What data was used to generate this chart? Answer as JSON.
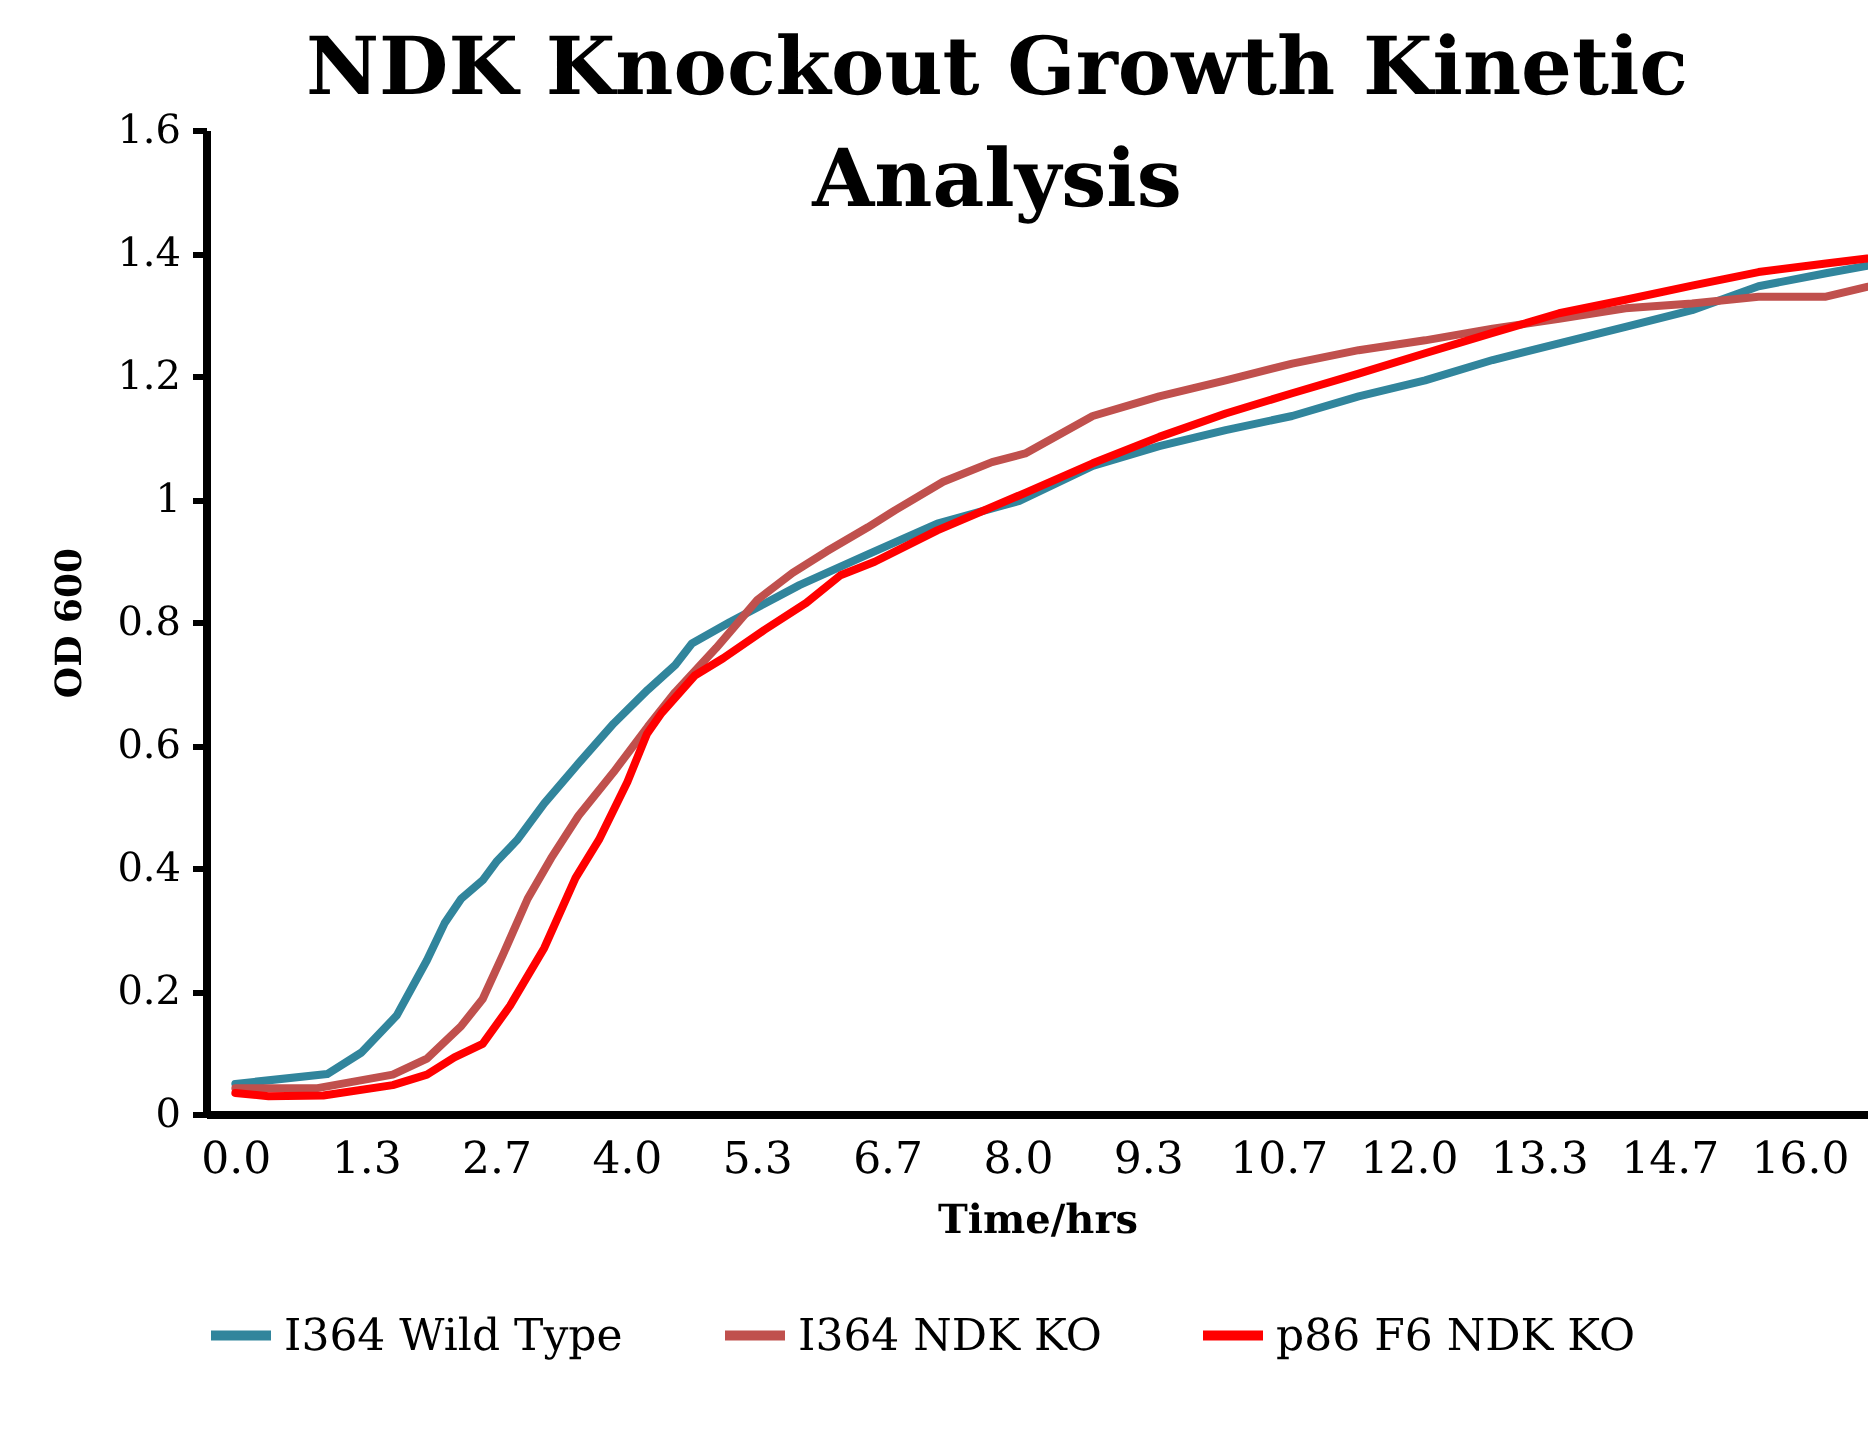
{
  "chart_data": {
    "type": "line",
    "title": "NDK Knockout Growth Kinetic Analysis",
    "xlabel": "Time/hrs",
    "ylabel": "OD 600",
    "xlim": [
      -0.3,
      16.7
    ],
    "ylim": [
      0,
      1.6
    ],
    "xticks": [
      {
        "value": 0,
        "label": "0.0"
      },
      {
        "value": 1.333,
        "label": "1.3"
      },
      {
        "value": 2.667,
        "label": "2.7"
      },
      {
        "value": 4,
        "label": "4.0"
      },
      {
        "value": 5.333,
        "label": "5.3"
      },
      {
        "value": 6.667,
        "label": "6.7"
      },
      {
        "value": 8,
        "label": "8.0"
      },
      {
        "value": 9.333,
        "label": "9.3"
      },
      {
        "value": 10.667,
        "label": "10.7"
      },
      {
        "value": 12,
        "label": "12.0"
      },
      {
        "value": 13.333,
        "label": "13.3"
      },
      {
        "value": 14.667,
        "label": "14.7"
      },
      {
        "value": 16,
        "label": "16.0"
      }
    ],
    "yticks": [
      0,
      0.2,
      0.4,
      0.6,
      0.8,
      1,
      1.2,
      1.4,
      1.6
    ],
    "grid": false,
    "legend": "bottom",
    "marker": "none",
    "line_style": "solid",
    "series": [
      {
        "name": "I364 Wild Type",
        "color": "#31859c",
        "x": [
          0,
          0.94,
          1.29,
          1.65,
          1.96,
          2.14,
          2.31,
          2.53,
          2.67,
          2.88,
          3.16,
          3.51,
          3.87,
          4.22,
          4.5,
          4.67,
          5.06,
          5.77,
          6.47,
          7.18,
          8.02,
          8.77,
          9.45,
          10.13,
          10.81,
          11.49,
          12.17,
          12.86,
          13.54,
          14.22,
          14.9,
          15.58,
          16.27,
          16.69
        ],
        "values": [
          0.049,
          0.065,
          0.1,
          0.16,
          0.25,
          0.31,
          0.35,
          0.38,
          0.41,
          0.445,
          0.505,
          0.57,
          0.635,
          0.69,
          0.73,
          0.765,
          0.8,
          0.86,
          0.91,
          0.96,
          0.997,
          1.054,
          1.086,
          1.112,
          1.135,
          1.167,
          1.193,
          1.226,
          1.253,
          1.28,
          1.307,
          1.346,
          1.367,
          1.379
        ]
      },
      {
        "name": "I364 NDK KO",
        "color": "#c0504d",
        "x": [
          0,
          0.84,
          1.61,
          1.96,
          2.31,
          2.53,
          2.74,
          2.99,
          3.23,
          3.51,
          3.87,
          4.22,
          4.5,
          4.92,
          5.34,
          5.7,
          6.05,
          6.47,
          6.75,
          7.24,
          7.74,
          8.08,
          8.77,
          9.45,
          10.13,
          10.81,
          11.49,
          12.17,
          12.86,
          13.54,
          14.22,
          14.9,
          15.58,
          16.27,
          16.69
        ],
        "values": [
          0.042,
          0.042,
          0.064,
          0.09,
          0.143,
          0.187,
          0.26,
          0.35,
          0.416,
          0.485,
          0.556,
          0.63,
          0.686,
          0.758,
          0.836,
          0.88,
          0.915,
          0.954,
          0.982,
          1.028,
          1.06,
          1.074,
          1.135,
          1.167,
          1.193,
          1.22,
          1.242,
          1.258,
          1.277,
          1.293,
          1.31,
          1.318,
          1.329,
          1.329,
          1.345
        ]
      },
      {
        "name": "p86 F6 NDK KO",
        "color": "#ff0000",
        "x": [
          0,
          0.34,
          0.9,
          1.61,
          1.96,
          2.24,
          2.53,
          2.81,
          3.16,
          3.48,
          3.72,
          4.01,
          4.21,
          4.36,
          4.7,
          4.99,
          5.41,
          5.84,
          6.19,
          6.54,
          7.18,
          8.08,
          8.77,
          9.45,
          10.13,
          10.81,
          11.49,
          12.17,
          12.86,
          13.54,
          14.22,
          14.9,
          15.58,
          16.27,
          16.69
        ],
        "values": [
          0.034,
          0.029,
          0.03,
          0.047,
          0.064,
          0.092,
          0.114,
          0.176,
          0.27,
          0.384,
          0.446,
          0.54,
          0.618,
          0.652,
          0.713,
          0.741,
          0.787,
          0.831,
          0.876,
          0.898,
          0.949,
          1.01,
          1.058,
          1.101,
          1.139,
          1.172,
          1.204,
          1.237,
          1.27,
          1.302,
          1.324,
          1.347,
          1.369,
          1.383,
          1.391
        ]
      }
    ]
  }
}
